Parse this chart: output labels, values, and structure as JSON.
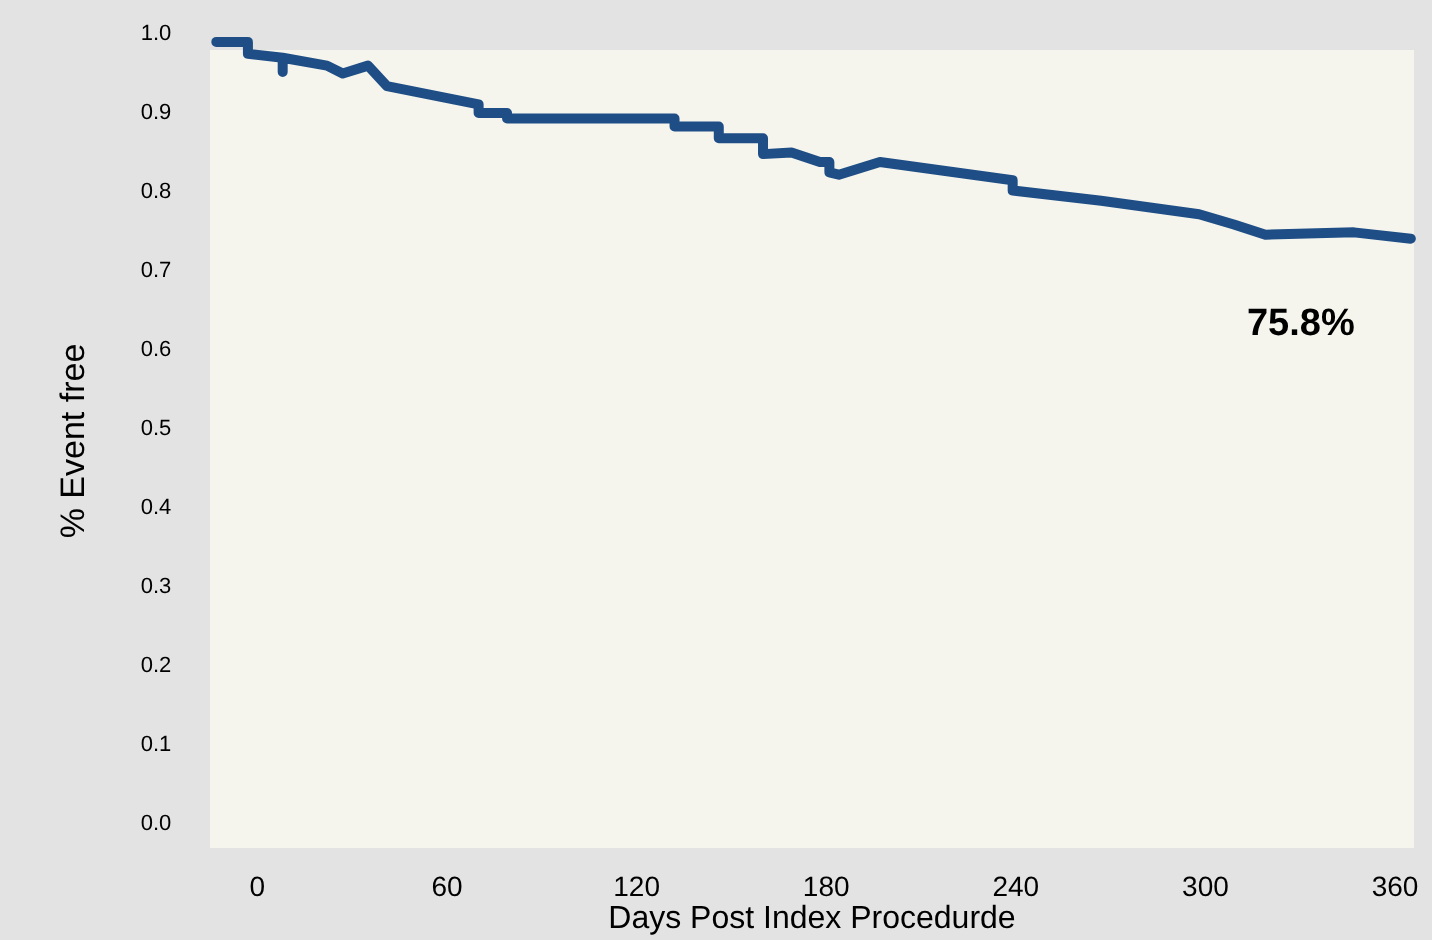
{
  "chart_data": {
    "type": "line",
    "xlabel": "Days Post Index Procedurde",
    "ylabel": "% Event free",
    "x": [
      -13,
      -3,
      -3,
      8,
      8,
      8,
      22,
      27,
      35,
      41,
      70,
      70,
      79,
      79,
      132,
      132,
      146,
      146,
      160,
      160,
      169,
      178,
      181,
      181,
      184,
      197,
      239,
      239,
      267,
      298,
      309,
      319,
      347,
      365
    ],
    "series": [
      {
        "color": "#1f4e86",
        "values": [
          0.99,
          0.99,
          0.975,
          0.97,
          0.952,
          0.97,
          0.96,
          0.95,
          0.96,
          0.934,
          0.911,
          0.9,
          0.9,
          0.893,
          0.893,
          0.883,
          0.883,
          0.868,
          0.868,
          0.848,
          0.85,
          0.838,
          0.838,
          0.825,
          0.822,
          0.838,
          0.815,
          0.802,
          0.789,
          0.772,
          0.759,
          0.746,
          0.749,
          0.741
        ]
      }
    ],
    "annotations": [
      "75.8%"
    ],
    "xlim": [
      -15,
      366
    ],
    "xticks": [
      0,
      60,
      120,
      180,
      240,
      300,
      360
    ],
    "ylim": [
      -0.03,
      1.0
    ],
    "yticks": [
      {
        "value": 0,
        "label": "0.0"
      },
      {
        "value": 0.1,
        "label": "0.1"
      },
      {
        "value": 0.2,
        "label": "0.2"
      },
      {
        "value": 0.3,
        "label": "0.3"
      },
      {
        "value": 0.4,
        "label": "0.4"
      },
      {
        "value": 0.5,
        "label": "0.5"
      },
      {
        "value": 0.6,
        "label": "0.6"
      },
      {
        "value": 0.7,
        "label": "0.7"
      },
      {
        "value": 0.8,
        "label": "0.8"
      },
      {
        "value": 0.9,
        "label": "0.9"
      },
      {
        "value": 1,
        "label": "1.0"
      }
    ],
    "grid": false,
    "marker": "none",
    "line_style": "solid"
  }
}
